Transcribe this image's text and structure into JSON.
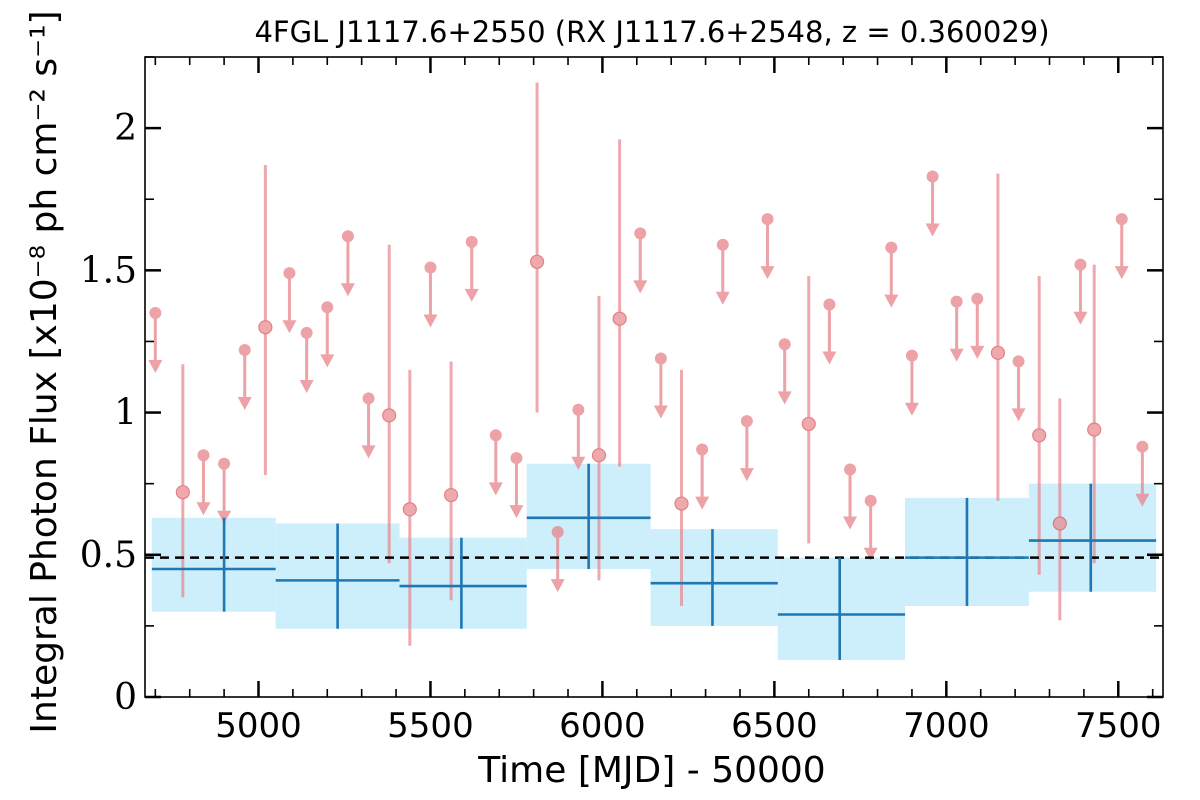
{
  "chart_data": {
    "type": "scatter",
    "title": "4FGL J1117.6+2550 (RX J1117.6+2548, z = 0.360029)",
    "xlabel": "Time [MJD] - 50000",
    "ylabel": "Integral Photon Flux [x10⁻⁸ ph cm⁻² s⁻¹]",
    "xlim": [
      4670,
      7630
    ],
    "ylim": [
      0,
      2.25
    ],
    "xticks": [
      5000,
      5500,
      6000,
      6500,
      7000,
      7500
    ],
    "xtick_labels": [
      "5000",
      "5500",
      "6000",
      "6500",
      "7000",
      "7500"
    ],
    "yticks": [
      0,
      0.5,
      1,
      1.5,
      2
    ],
    "ytick_labels": [
      "0",
      "0.5",
      "1",
      "1.5",
      "2"
    ],
    "mean_flux": 0.49,
    "colors": {
      "short_bins": "#e8888f",
      "long_bins": "#1f77b4",
      "band": "#cdeefb",
      "mean_line": "#000000"
    },
    "series": [
      {
        "bin_type": "short",
        "detections": [
          {
            "x": 4780,
            "y": 0.72,
            "ylo": 0.35,
            "yhi": 1.17
          },
          {
            "x": 5020,
            "y": 1.3,
            "ylo": 0.78,
            "yhi": 1.87
          },
          {
            "x": 5380,
            "y": 0.99,
            "ylo": 0.47,
            "yhi": 1.59
          },
          {
            "x": 5440,
            "y": 0.66,
            "ylo": 0.18,
            "yhi": 1.15
          },
          {
            "x": 5560,
            "y": 0.71,
            "ylo": 0.34,
            "yhi": 1.18
          },
          {
            "x": 5810,
            "y": 1.53,
            "ylo": 1.0,
            "yhi": 2.16
          },
          {
            "x": 5990,
            "y": 0.85,
            "ylo": 0.41,
            "yhi": 1.41
          },
          {
            "x": 6050,
            "y": 1.33,
            "ylo": 0.81,
            "yhi": 1.96
          },
          {
            "x": 6230,
            "y": 0.68,
            "ylo": 0.32,
            "yhi": 1.15
          },
          {
            "x": 6600,
            "y": 0.96,
            "ylo": 0.54,
            "yhi": 1.48
          },
          {
            "x": 7150,
            "y": 1.21,
            "ylo": 0.69,
            "yhi": 1.84
          },
          {
            "x": 7270,
            "y": 0.92,
            "ylo": 0.43,
            "yhi": 1.48
          },
          {
            "x": 7330,
            "y": 0.61,
            "ylo": 0.27,
            "yhi": 1.05
          },
          {
            "x": 7430,
            "y": 0.94,
            "ylo": 0.47,
            "yhi": 1.52
          }
        ],
        "upper_limits": [
          {
            "x": 4700,
            "y": 1.35
          },
          {
            "x": 4840,
            "y": 0.85
          },
          {
            "x": 4900,
            "y": 0.82
          },
          {
            "x": 4960,
            "y": 1.22
          },
          {
            "x": 5090,
            "y": 1.49
          },
          {
            "x": 5140,
            "y": 1.28
          },
          {
            "x": 5200,
            "y": 1.37
          },
          {
            "x": 5260,
            "y": 1.62
          },
          {
            "x": 5320,
            "y": 1.05
          },
          {
            "x": 5500,
            "y": 1.51
          },
          {
            "x": 5620,
            "y": 1.6
          },
          {
            "x": 5690,
            "y": 0.92
          },
          {
            "x": 5750,
            "y": 0.84
          },
          {
            "x": 5870,
            "y": 0.58
          },
          {
            "x": 5930,
            "y": 1.01
          },
          {
            "x": 6110,
            "y": 1.63
          },
          {
            "x": 6170,
            "y": 1.19
          },
          {
            "x": 6290,
            "y": 0.87
          },
          {
            "x": 6350,
            "y": 1.59
          },
          {
            "x": 6420,
            "y": 0.97
          },
          {
            "x": 6480,
            "y": 1.68
          },
          {
            "x": 6530,
            "y": 1.24
          },
          {
            "x": 6660,
            "y": 1.38
          },
          {
            "x": 6720,
            "y": 0.8
          },
          {
            "x": 6780,
            "y": 0.69
          },
          {
            "x": 6840,
            "y": 1.58
          },
          {
            "x": 6900,
            "y": 1.2
          },
          {
            "x": 6960,
            "y": 1.83
          },
          {
            "x": 7030,
            "y": 1.39
          },
          {
            "x": 7090,
            "y": 1.4
          },
          {
            "x": 7210,
            "y": 1.18
          },
          {
            "x": 7390,
            "y": 1.52
          },
          {
            "x": 7510,
            "y": 1.68
          },
          {
            "x": 7570,
            "y": 0.88
          }
        ]
      },
      {
        "bin_type": "long",
        "bins": [
          {
            "x0": 4690,
            "x1": 5050,
            "xc": 4900,
            "y": 0.45,
            "ylo": 0.3,
            "yhi": 0.63
          },
          {
            "x0": 5050,
            "x1": 5410,
            "xc": 5230,
            "y": 0.41,
            "ylo": 0.24,
            "yhi": 0.61
          },
          {
            "x0": 5410,
            "x1": 5780,
            "xc": 5590,
            "y": 0.39,
            "ylo": 0.24,
            "yhi": 0.56
          },
          {
            "x0": 5780,
            "x1": 6140,
            "xc": 5960,
            "y": 0.63,
            "ylo": 0.45,
            "yhi": 0.82
          },
          {
            "x0": 6140,
            "x1": 6510,
            "xc": 6320,
            "y": 0.4,
            "ylo": 0.25,
            "yhi": 0.59
          },
          {
            "x0": 6510,
            "x1": 6880,
            "xc": 6690,
            "y": 0.29,
            "ylo": 0.13,
            "yhi": 0.49
          },
          {
            "x0": 6880,
            "x1": 7240,
            "xc": 7060,
            "y": 0.49,
            "ylo": 0.32,
            "yhi": 0.7
          },
          {
            "x0": 7240,
            "x1": 7610,
            "xc": 7420,
            "y": 0.55,
            "ylo": 0.37,
            "yhi": 0.75
          }
        ]
      }
    ]
  }
}
